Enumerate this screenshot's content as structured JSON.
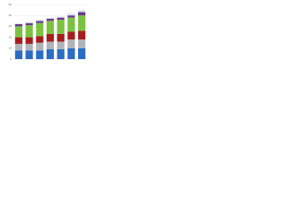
{
  "chart_data": {
    "type": "stacked_bar",
    "categories": [
      null,
      null,
      null,
      null,
      null,
      null,
      null
    ],
    "series": [
      {
        "color": "#2b6cc4",
        "values": [
          8,
          8,
          8,
          9,
          9,
          10,
          10
        ]
      },
      {
        "color": "#b0b4b8",
        "values": [
          6,
          6,
          7,
          7,
          7,
          8,
          8
        ]
      },
      {
        "color": "#a51d1d",
        "values": [
          6,
          6,
          6,
          7,
          7,
          7,
          8
        ]
      },
      {
        "color": "#7cc242",
        "values": [
          10,
          11,
          12,
          12,
          13,
          13,
          14
        ]
      },
      {
        "color": "#6b3a8c",
        "values": [
          2,
          2,
          2,
          2,
          2,
          2,
          3
        ]
      },
      {
        "color": "#d9e6ef",
        "values": [
          1,
          1,
          1,
          1,
          1,
          2,
          2
        ]
      }
    ],
    "ylim": [
      0,
      50
    ],
    "yticks": [
      0,
      10,
      20,
      30,
      40,
      50
    ],
    "grid": true
  }
}
